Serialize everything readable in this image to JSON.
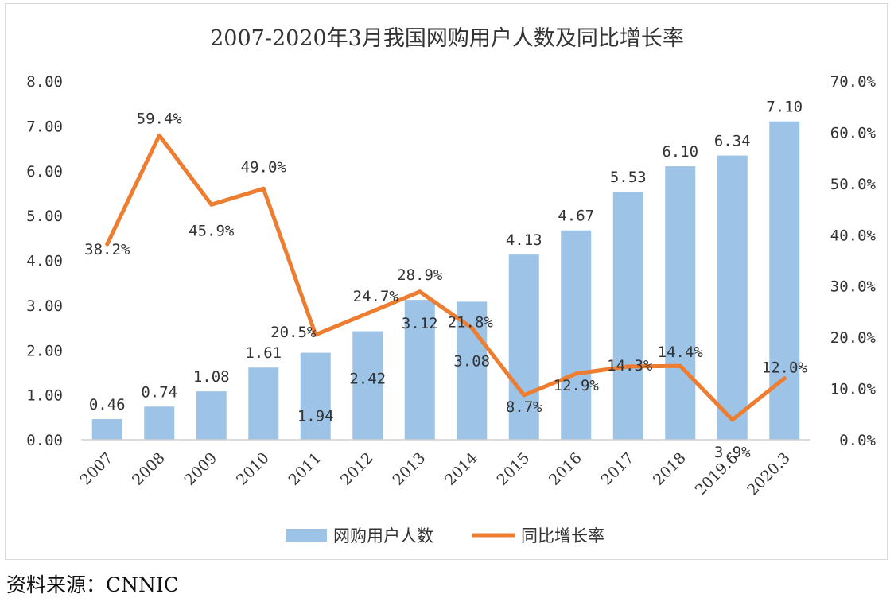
{
  "chart_data": {
    "type": "bar+line",
    "title": "2007-2020年3月我国网购用户人数及同比增长率",
    "categories": [
      "2007",
      "2008",
      "2009",
      "2010",
      "2011",
      "2012",
      "2013",
      "2014",
      "2015",
      "2016",
      "2017",
      "2018",
      "2019.6",
      "2020.3"
    ],
    "series": [
      {
        "name": "网购用户人数",
        "type": "bar",
        "axis": "left",
        "color": "#9dc3e6",
        "values": [
          0.46,
          0.74,
          1.08,
          1.61,
          1.94,
          2.42,
          3.12,
          3.08,
          4.13,
          4.67,
          5.53,
          6.1,
          6.34,
          7.1
        ],
        "labels": [
          "0.46",
          "0.74",
          "1.08",
          "1.61",
          "1.94",
          "2.42",
          "3.12",
          "3.08",
          "4.13",
          "4.67",
          "5.53",
          "6.10",
          "6.34",
          "7.10"
        ]
      },
      {
        "name": "同比增长率",
        "type": "line",
        "axis": "right",
        "color": "#ed7d31",
        "values": [
          38.2,
          59.4,
          45.9,
          49.0,
          20.5,
          24.7,
          28.9,
          21.8,
          8.7,
          12.9,
          14.3,
          14.4,
          3.9,
          12.0
        ],
        "labels": [
          "38.2%",
          "59.4%",
          "45.9%",
          "49.0%",
          "20.5%",
          "24.7%",
          "28.9%",
          "21.8%",
          "8.7%",
          "12.9%",
          "14.3%",
          "14.4%",
          "3.9%",
          "12.0%"
        ]
      }
    ],
    "y_left": {
      "range": [
        0,
        8
      ],
      "ticks": [
        0,
        1,
        2,
        3,
        4,
        5,
        6,
        7,
        8
      ],
      "tick_labels": [
        "0.00",
        "1.00",
        "2.00",
        "3.00",
        "4.00",
        "5.00",
        "6.00",
        "7.00",
        "8.00"
      ]
    },
    "y_right": {
      "range": [
        0,
        70
      ],
      "ticks": [
        0,
        10,
        20,
        30,
        40,
        50,
        60,
        70
      ],
      "tick_labels": [
        "0.0%",
        "10.0%",
        "20.0%",
        "30.0%",
        "40.0%",
        "50.0%",
        "60.0%",
        "70.0%"
      ]
    },
    "grid": false,
    "legend_position": "bottom",
    "legend": [
      {
        "label": "网购用户人数",
        "color": "#9dc3e6"
      },
      {
        "label": "同比增长率",
        "color": "#ed7d31"
      }
    ]
  },
  "source_note": "资料来源：CNNIC"
}
